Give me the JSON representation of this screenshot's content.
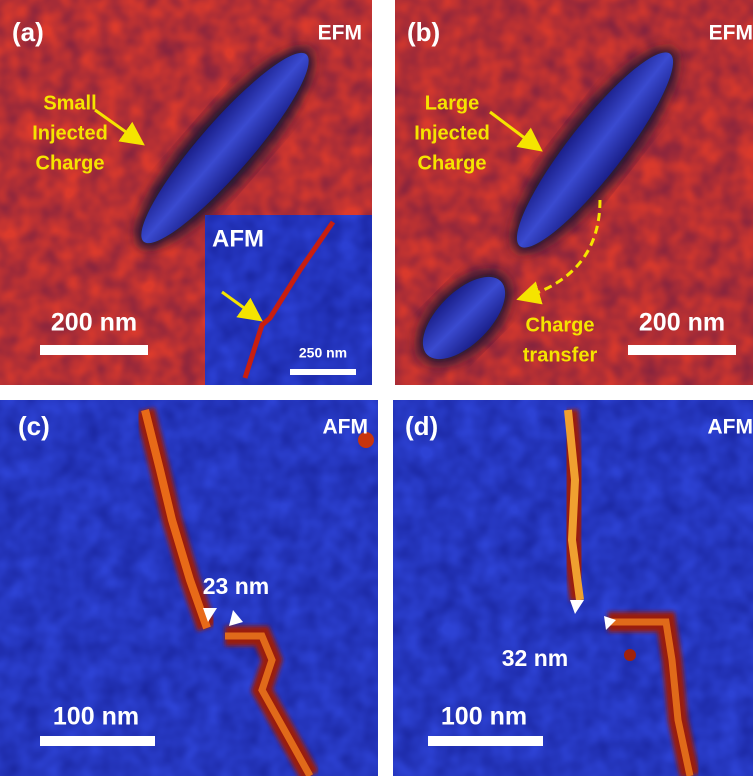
{
  "panels": [
    {
      "label": "(a)",
      "mode": "EFM",
      "annotation": [
        "Small",
        "Injected",
        "Charge"
      ],
      "scale_bar": "200 nm",
      "inset": {
        "mode": "AFM",
        "scale_bar": "250 nm"
      }
    },
    {
      "label": "(b)",
      "mode": "EFM",
      "annotation": [
        "Large",
        "Injected",
        "Charge"
      ],
      "transfer_annotation": [
        "Charge",
        "transfer"
      ],
      "scale_bar": "200 nm"
    },
    {
      "label": "(c)",
      "mode": "AFM",
      "gap": "23 nm",
      "scale_bar": "100 nm"
    },
    {
      "label": "(d)",
      "mode": "AFM",
      "gap": "32 nm",
      "scale_bar": "100 nm"
    }
  ]
}
